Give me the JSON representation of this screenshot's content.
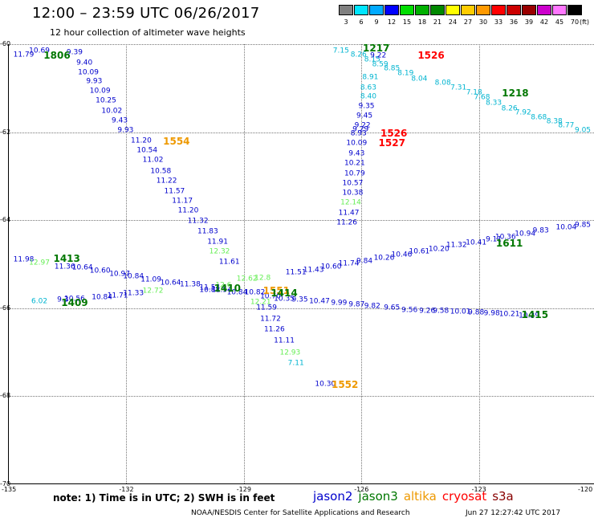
{
  "header": {
    "title": "12:00 – 23:59 UTC 06/26/2017",
    "subtitle": "12 hour collection of altimeter wave heights"
  },
  "colorbar": {
    "unit": "(ft)",
    "bins": [
      {
        "label": "3",
        "color": "#808080"
      },
      {
        "label": "6",
        "color": "#00e5ff"
      },
      {
        "label": "9",
        "color": "#00aaff"
      },
      {
        "label": "12",
        "color": "#0000ff"
      },
      {
        "label": "15",
        "color": "#00dd00"
      },
      {
        "label": "18",
        "color": "#00b000"
      },
      {
        "label": "21",
        "color": "#008800"
      },
      {
        "label": "24",
        "color": "#ffff00"
      },
      {
        "label": "27",
        "color": "#ffcc00"
      },
      {
        "label": "30",
        "color": "#ff9900"
      },
      {
        "label": "33",
        "color": "#ff0000"
      },
      {
        "label": "36",
        "color": "#cc0000"
      },
      {
        "label": "39",
        "color": "#990000"
      },
      {
        "label": "42",
        "color": "#cc00cc"
      },
      {
        "label": "45",
        "color": "#ff77ff"
      },
      {
        "label": "70",
        "color": "#000000"
      }
    ]
  },
  "map": {
    "lat_labels": [
      "-60",
      "-62",
      "-64",
      "-66",
      "-68",
      "-70"
    ],
    "lon_labels": [
      "-135",
      "-132",
      "-129",
      "-126",
      "-123",
      "-120"
    ],
    "lat_range": [
      -70,
      -60
    ],
    "lon_range": [
      -135,
      -120
    ],
    "grid": true
  },
  "satellites": {
    "jason2": "#0000cc",
    "jason3": "#007700",
    "altika": "#ee9900",
    "cryosat": "#ff0000",
    "s3a": "#880000",
    "cyan": "#00b4d0",
    "lightgreen": "#66ee55"
  },
  "tracks": [
    {
      "name": "track-descending-west",
      "readings": [
        {
          "v": "11.79",
          "c": "jason2",
          "lat": -60.25,
          "lon": -134.6
        },
        {
          "v": "10.69",
          "c": "jason2",
          "lat": -60.17,
          "lon": -134.2
        },
        {
          "v": "9.39",
          "c": "jason2",
          "lat": -60.2,
          "lon": -133.3
        },
        {
          "v": "9.40",
          "c": "jason2",
          "lat": -60.43,
          "lon": -133.05
        },
        {
          "v": "10.09",
          "c": "jason2",
          "lat": -60.65,
          "lon": -132.95
        },
        {
          "v": "9.93",
          "c": "jason2",
          "lat": -60.85,
          "lon": -132.8
        },
        {
          "v": "10.09",
          "c": "jason2",
          "lat": -61.07,
          "lon": -132.65
        },
        {
          "v": "10.25",
          "c": "jason2",
          "lat": -61.3,
          "lon": -132.5
        },
        {
          "v": "10.02",
          "c": "jason2",
          "lat": -61.53,
          "lon": -132.35
        },
        {
          "v": "9.43",
          "c": "jason2",
          "lat": -61.75,
          "lon": -132.15
        },
        {
          "v": "9.93",
          "c": "jason2",
          "lat": -61.97,
          "lon": -132.0
        },
        {
          "v": "11.20",
          "c": "jason2",
          "lat": -62.2,
          "lon": -131.6
        },
        {
          "v": "10.54",
          "c": "jason2",
          "lat": -62.43,
          "lon": -131.45
        },
        {
          "v": "11.02",
          "c": "jason2",
          "lat": -62.65,
          "lon": -131.3
        },
        {
          "v": "10.58",
          "c": "jason2",
          "lat": -62.9,
          "lon": -131.1
        },
        {
          "v": "11.22",
          "c": "jason2",
          "lat": -63.12,
          "lon": -130.95
        },
        {
          "v": "11.57",
          "c": "jason2",
          "lat": -63.35,
          "lon": -130.75
        },
        {
          "v": "11.17",
          "c": "jason2",
          "lat": -63.57,
          "lon": -130.55
        },
        {
          "v": "11.20",
          "c": "jason2",
          "lat": -63.8,
          "lon": -130.4
        },
        {
          "v": "11.32",
          "c": "jason2",
          "lat": -64.03,
          "lon": -130.15
        },
        {
          "v": "11.83",
          "c": "jason2",
          "lat": -64.27,
          "lon": -129.9
        },
        {
          "v": "11.91",
          "c": "jason2",
          "lat": -64.5,
          "lon": -129.65
        },
        {
          "v": "12.32",
          "c": "lightgreen",
          "lat": -64.72,
          "lon": -129.6
        },
        {
          "v": "11.61",
          "c": "jason2",
          "lat": -64.97,
          "lon": -129.35
        },
        {
          "v": "11.59",
          "c": "jason2",
          "lat": -66.0,
          "lon": -128.4
        },
        {
          "v": "11.72",
          "c": "jason2",
          "lat": -66.25,
          "lon": -128.3
        },
        {
          "v": "11.26",
          "c": "jason2",
          "lat": -66.5,
          "lon": -128.2
        },
        {
          "v": "11.11",
          "c": "jason2",
          "lat": -66.75,
          "lon": -127.95
        },
        {
          "v": "12.93",
          "c": "lightgreen",
          "lat": -67.02,
          "lon": -127.8
        },
        {
          "v": "7.11",
          "c": "cyan",
          "lat": -67.27,
          "lon": -127.65
        },
        {
          "v": "10.30",
          "c": "jason2",
          "lat": -67.73,
          "lon": -126.9
        }
      ]
    },
    {
      "name": "track-ascending-main",
      "readings": [
        {
          "v": "11.98",
          "c": "jason2",
          "lat": -64.9,
          "lon": -134.6
        },
        {
          "v": "12.97",
          "c": "lightgreen",
          "lat": -64.98,
          "lon": -134.2
        },
        {
          "v": "11.36",
          "c": "jason2",
          "lat": -65.07,
          "lon": -133.55
        },
        {
          "v": "10.64",
          "c": "jason2",
          "lat": -65.1,
          "lon": -133.1
        },
        {
          "v": "10.60",
          "c": "jason2",
          "lat": -65.17,
          "lon": -132.65
        },
        {
          "v": "10.97",
          "c": "jason2",
          "lat": -65.23,
          "lon": -132.15
        },
        {
          "v": "10.84",
          "c": "jason2",
          "lat": -65.3,
          "lon": -131.8
        },
        {
          "v": "11.09",
          "c": "jason2",
          "lat": -65.37,
          "lon": -131.35
        },
        {
          "v": "10.64",
          "c": "jason2",
          "lat": -65.43,
          "lon": -130.85
        },
        {
          "v": "11.38",
          "c": "jason2",
          "lat": -65.48,
          "lon": -130.35
        },
        {
          "v": "11.54",
          "c": "jason2",
          "lat": -65.55,
          "lon": -129.85
        },
        {
          "v": "11.51",
          "c": "jason2",
          "lat": -65.2,
          "lon": -127.65
        },
        {
          "v": "11.43",
          "c": "jason2",
          "lat": -65.15,
          "lon": -127.2
        },
        {
          "v": "10.60",
          "c": "jason2",
          "lat": -65.07,
          "lon": -126.75
        },
        {
          "v": "11.74",
          "c": "jason2",
          "lat": -65.0,
          "lon": -126.3
        },
        {
          "v": "9.84",
          "c": "jason2",
          "lat": -64.95,
          "lon": -125.9
        },
        {
          "v": "10.26",
          "c": "jason2",
          "lat": -64.88,
          "lon": -125.4
        },
        {
          "v": "10.46",
          "c": "jason2",
          "lat": -64.8,
          "lon": -124.95
        },
        {
          "v": "10.61",
          "c": "jason2",
          "lat": -64.73,
          "lon": -124.5
        },
        {
          "v": "10.20",
          "c": "jason2",
          "lat": -64.67,
          "lon": -124.0
        },
        {
          "v": "11.32",
          "c": "jason2",
          "lat": -64.58,
          "lon": -123.55
        },
        {
          "v": "10.41",
          "c": "jason2",
          "lat": -64.52,
          "lon": -123.05
        },
        {
          "v": "9.11",
          "c": "jason2",
          "lat": -64.45,
          "lon": -122.6
        },
        {
          "v": "10.36",
          "c": "jason2",
          "lat": -64.4,
          "lon": -122.3
        },
        {
          "v": "10.94",
          "c": "jason2",
          "lat": -64.32,
          "lon": -121.8
        },
        {
          "v": "9.83",
          "c": "jason2",
          "lat": -64.25,
          "lon": -121.4
        },
        {
          "v": "10.04",
          "c": "jason2",
          "lat": -64.18,
          "lon": -120.75
        },
        {
          "v": "9.85",
          "c": "jason2",
          "lat": -64.12,
          "lon": -120.3
        }
      ]
    },
    {
      "name": "track-ascending-lower",
      "readings": [
        {
          "v": "6.02",
          "c": "cyan",
          "lat": -65.85,
          "lon": -134.2
        },
        {
          "v": "9.3",
          "c": "jason2",
          "lat": -65.83,
          "lon": -133.6
        },
        {
          "v": "10.56",
          "c": "jason2",
          "lat": -65.8,
          "lon": -133.3
        },
        {
          "v": "10.84",
          "c": "jason2",
          "lat": -65.77,
          "lon": -132.6
        },
        {
          "v": "11.71",
          "c": "jason2",
          "lat": -65.73,
          "lon": -132.2
        },
        {
          "v": "11.33",
          "c": "jason2",
          "lat": -65.67,
          "lon": -131.8
        },
        {
          "v": "12.72",
          "c": "lightgreen",
          "lat": -65.62,
          "lon": -131.3
        },
        {
          "v": "10.84",
          "c": "jason2",
          "lat": -65.6,
          "lon": -129.85
        },
        {
          "v": "10.35",
          "c": "jason2",
          "lat": -65.8,
          "lon": -127.95
        },
        {
          "v": "9.35",
          "c": "jason2",
          "lat": -65.83,
          "lon": -127.55
        },
        {
          "v": "10.47",
          "c": "jason2",
          "lat": -65.85,
          "lon": -127.05
        },
        {
          "v": "9.99",
          "c": "jason2",
          "lat": -65.9,
          "lon": -126.55
        },
        {
          "v": "9.87",
          "c": "jason2",
          "lat": -65.93,
          "lon": -126.1
        },
        {
          "v": "9.82",
          "c": "jason2",
          "lat": -65.97,
          "lon": -125.7
        },
        {
          "v": "9.65",
          "c": "jason2",
          "lat": -66.0,
          "lon": -125.2
        },
        {
          "v": "9.56",
          "c": "jason2",
          "lat": -66.05,
          "lon": -124.75
        },
        {
          "v": "9.26",
          "c": "jason2",
          "lat": -66.07,
          "lon": -124.3
        },
        {
          "v": "9.58",
          "c": "jason2",
          "lat": -66.08,
          "lon": -123.95
        },
        {
          "v": "10.01",
          "c": "jason2",
          "lat": -66.1,
          "lon": -123.45
        },
        {
          "v": "9.88",
          "c": "jason2",
          "lat": -66.12,
          "lon": -123.05
        },
        {
          "v": "9.98",
          "c": "jason2",
          "lat": -66.13,
          "lon": -122.65
        },
        {
          "v": "10.21",
          "c": "jason2",
          "lat": -66.15,
          "lon": -122.2
        },
        {
          "v": "10.29",
          "c": "jason2",
          "lat": -66.18,
          "lon": -121.7
        }
      ]
    },
    {
      "name": "track-cyan-arc",
      "readings": [
        {
          "v": "7.15",
          "c": "cyan",
          "lat": -60.17,
          "lon": -126.5
        },
        {
          "v": "8.26",
          "c": "cyan",
          "lat": -60.25,
          "lon": -126.05
        },
        {
          "v": "8.15",
          "c": "cyan",
          "lat": -60.37,
          "lon": -125.7
        },
        {
          "v": "9.22",
          "c": "jason2",
          "lat": -60.27,
          "lon": -125.55
        },
        {
          "v": "8.59",
          "c": "cyan",
          "lat": -60.47,
          "lon": -125.5
        },
        {
          "v": "8.85",
          "c": "cyan",
          "lat": -60.57,
          "lon": -125.2
        },
        {
          "v": "8.19",
          "c": "cyan",
          "lat": -60.67,
          "lon": -124.85
        },
        {
          "v": "8.04",
          "c": "cyan",
          "lat": -60.8,
          "lon": -124.5
        },
        {
          "v": "8.08",
          "c": "cyan",
          "lat": -60.9,
          "lon": -123.9
        },
        {
          "v": "7.31",
          "c": "cyan",
          "lat": -61.0,
          "lon": -123.5
        },
        {
          "v": "7.18",
          "c": "cyan",
          "lat": -61.12,
          "lon": -123.1
        },
        {
          "v": "7.68",
          "c": "cyan",
          "lat": -61.23,
          "lon": -122.9
        },
        {
          "v": "8.33",
          "c": "cyan",
          "lat": -61.35,
          "lon": -122.6
        },
        {
          "v": "8.26",
          "c": "cyan",
          "lat": -61.47,
          "lon": -122.2
        },
        {
          "v": "7.92",
          "c": "cyan",
          "lat": -61.57,
          "lon": -121.85
        },
        {
          "v": "8.68",
          "c": "cyan",
          "lat": -61.67,
          "lon": -121.45
        },
        {
          "v": "8.38",
          "c": "cyan",
          "lat": -61.77,
          "lon": -121.05
        },
        {
          "v": "8.77",
          "c": "cyan",
          "lat": -61.87,
          "lon": -120.75
        },
        {
          "v": "9.05",
          "c": "cyan",
          "lat": -61.97,
          "lon": -120.3
        }
      ]
    },
    {
      "name": "track-vertical-126",
      "readings": [
        {
          "v": "8.91",
          "c": "cyan",
          "lat": -60.77,
          "lon": -125.75
        },
        {
          "v": "8.63",
          "c": "cyan",
          "lat": -61.0,
          "lon": -125.8
        },
        {
          "v": "8.40",
          "c": "cyan",
          "lat": -61.2,
          "lon": -125.8
        },
        {
          "v": "9.35",
          "c": "jason2",
          "lat": -61.42,
          "lon": -125.85
        },
        {
          "v": "9.45",
          "c": "jason2",
          "lat": -61.65,
          "lon": -125.9
        },
        {
          "v": "9.22",
          "c": "jason2",
          "lat": -61.87,
          "lon": -125.95
        },
        {
          "v": "9.29",
          "c": "jason2",
          "lat": -61.95,
          "lon": -126.0
        },
        {
          "v": "8.93",
          "c": "jason2",
          "lat": -62.05,
          "lon": -126.05
        },
        {
          "v": "10.09",
          "c": "jason2",
          "lat": -62.27,
          "lon": -126.1
        },
        {
          "v": "9.43",
          "c": "jason2",
          "lat": -62.5,
          "lon": -126.1
        },
        {
          "v": "10.21",
          "c": "jason2",
          "lat": -62.72,
          "lon": -126.15
        },
        {
          "v": "10.79",
          "c": "jason2",
          "lat": -62.95,
          "lon": -126.15
        },
        {
          "v": "10.57",
          "c": "jason2",
          "lat": -63.17,
          "lon": -126.2
        },
        {
          "v": "10.38",
          "c": "jason2",
          "lat": -63.4,
          "lon": -126.2
        },
        {
          "v": "12.14",
          "c": "lightgreen",
          "lat": -63.62,
          "lon": -126.25
        },
        {
          "v": "11.47",
          "c": "jason2",
          "lat": -63.85,
          "lon": -126.3
        },
        {
          "v": "11.26",
          "c": "jason2",
          "lat": -64.07,
          "lon": -126.35
        }
      ]
    },
    {
      "name": "track-crossing-cluster",
      "readings": [
        {
          "v": "11.54",
          "c": "jason2",
          "lat": -65.6,
          "lon": -129.55
        },
        {
          "v": "12.6",
          "c": "lightgreen",
          "lat": -65.5,
          "lon": -129.5
        },
        {
          "v": "10.84",
          "c": "jason2",
          "lat": -65.65,
          "lon": -129.15
        },
        {
          "v": "10.82",
          "c": "jason2",
          "lat": -65.65,
          "lon": -128.7
        },
        {
          "v": "12.62",
          "c": "lightgreen",
          "lat": -65.35,
          "lon": -128.9
        },
        {
          "v": "12.8",
          "c": "lightgreen",
          "lat": -65.33,
          "lon": -128.5
        },
        {
          "v": "12.21",
          "c": "lightgreen",
          "lat": -65.87,
          "lon": -128.55
        },
        {
          "v": "10.70",
          "c": "jason2",
          "lat": -65.75,
          "lon": -128.3
        }
      ]
    }
  ],
  "time_labels": [
    {
      "t": "1806",
      "c": "jason3",
      "lat": -60.25,
      "lon": -133.75
    },
    {
      "t": "1554",
      "c": "altika",
      "lat": -62.2,
      "lon": -130.7
    },
    {
      "t": "1413",
      "c": "jason3",
      "lat": -64.88,
      "lon": -133.5
    },
    {
      "t": "1409",
      "c": "jason3",
      "lat": -65.87,
      "lon": -133.3
    },
    {
      "t": "1410",
      "c": "jason3",
      "lat": -65.55,
      "lon": -129.4
    },
    {
      "t": "1551",
      "c": "altika",
      "lat": -65.6,
      "lon": -128.15
    },
    {
      "t": "1414",
      "c": "jason3",
      "lat": -65.65,
      "lon": -127.95
    },
    {
      "t": "1552",
      "c": "altika",
      "lat": -67.73,
      "lon": -126.4
    },
    {
      "t": "1217",
      "c": "jason3",
      "lat": -60.1,
      "lon": -125.6
    },
    {
      "t": "1526",
      "c": "cryosat",
      "lat": -60.25,
      "lon": -124.2
    },
    {
      "t": "1526",
      "c": "cryosat",
      "lat": -62.03,
      "lon": -125.15
    },
    {
      "t": "1527",
      "c": "cryosat",
      "lat": -62.25,
      "lon": -125.2
    },
    {
      "t": "1218",
      "c": "jason3",
      "lat": -61.12,
      "lon": -122.05
    },
    {
      "t": "1611",
      "c": "jason3",
      "lat": -64.52,
      "lon": -122.2
    },
    {
      "t": "1415",
      "c": "jason3",
      "lat": -66.15,
      "lon": -121.55
    }
  ],
  "footer": {
    "note": "note:  1) Time is in UTC;  2) SWH is in feet",
    "legend": [
      {
        "label": "jason2",
        "key": "jason2"
      },
      {
        "label": "jason3",
        "key": "jason3"
      },
      {
        "label": "altika",
        "key": "altika"
      },
      {
        "label": "cryosat",
        "key": "cryosat"
      },
      {
        "label": "s3a",
        "key": "s3a"
      }
    ],
    "credit": "NOAA/NESDIS Center for Satellite Applications and Research",
    "timestamp": "Jun 27 12:27:42 UTC 2017"
  }
}
